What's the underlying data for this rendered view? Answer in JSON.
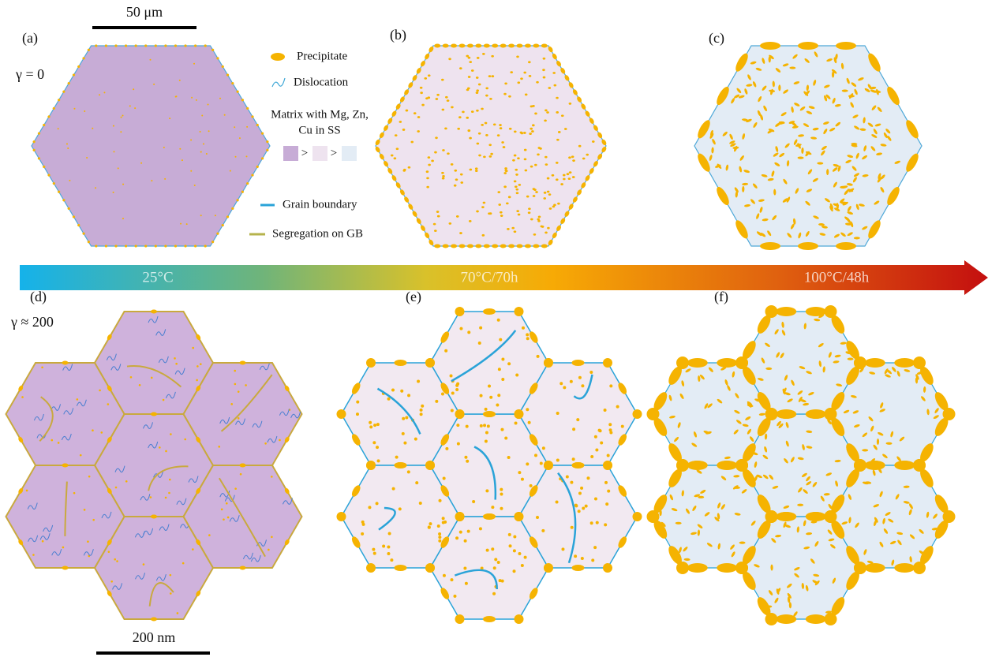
{
  "scale_bars": {
    "top": "50 μm",
    "bottom": "200 nm"
  },
  "panels": [
    {
      "label": "(a)",
      "strain": "γ = 0"
    },
    {
      "label": "(b)"
    },
    {
      "label": "(c)"
    },
    {
      "label": "(d)",
      "strain": "γ ≈ 200"
    },
    {
      "label": "(e)"
    },
    {
      "label": "(f)"
    }
  ],
  "legend": {
    "precipitate": "Precipitate",
    "dislocation": "Dislocation",
    "matrix": [
      "Matrix with Mg, Zn,",
      "Cu in SS"
    ],
    "order": [
      ">",
      ">"
    ],
    "grain_boundary": "Grain boundary",
    "segregation": "Segregation on GB"
  },
  "arrow": {
    "stages": [
      "25°C",
      "70°C/70h",
      "100°C/48h"
    ]
  }
}
